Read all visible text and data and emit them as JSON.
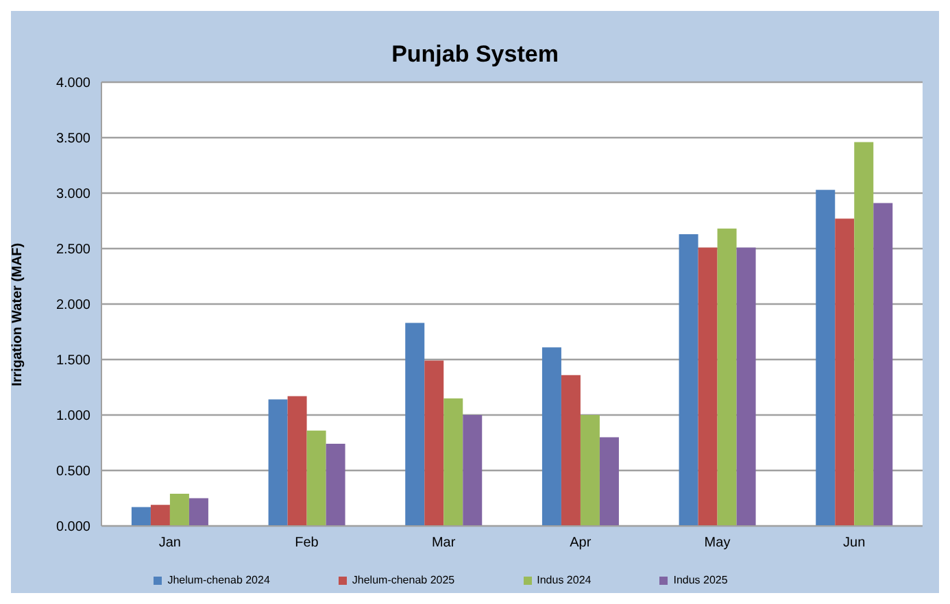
{
  "chart_data": {
    "type": "bar",
    "title": "Punjab System",
    "ylabel": "Irrigation Water (MAF)",
    "categories": [
      "Jan",
      "Feb",
      "Mar",
      "Apr",
      "May",
      "Jun"
    ],
    "series": [
      {
        "name": "Jhelum-chenab 2024",
        "color": "#4f81bd",
        "values": [
          0.17,
          1.14,
          1.83,
          1.61,
          2.63,
          3.03
        ]
      },
      {
        "name": "Jhelum-chenab 2025",
        "color": "#c0504d",
        "values": [
          0.19,
          1.17,
          1.49,
          1.36,
          2.51,
          2.77
        ]
      },
      {
        "name": "Indus 2024",
        "color": "#9bbb59",
        "values": [
          0.29,
          0.86,
          1.15,
          1.0,
          2.68,
          3.46
        ]
      },
      {
        "name": "Indus 2025",
        "color": "#8064a2",
        "values": [
          0.25,
          0.74,
          1.0,
          0.8,
          2.51,
          2.91
        ]
      }
    ],
    "ylim": [
      0,
      4
    ],
    "yticks": [
      {
        "value": 0,
        "label": "0.000"
      },
      {
        "value": 0.5,
        "label": "0.500"
      },
      {
        "value": 1,
        "label": "1.000"
      },
      {
        "value": 1.5,
        "label": "1.500"
      },
      {
        "value": 2,
        "label": "2.000"
      },
      {
        "value": 2.5,
        "label": "2.500"
      },
      {
        "value": 3,
        "label": "3.000"
      },
      {
        "value": 3.5,
        "label": "3.500"
      },
      {
        "value": 4,
        "label": "4.000"
      }
    ],
    "grid": "y",
    "legend": "bottom"
  }
}
